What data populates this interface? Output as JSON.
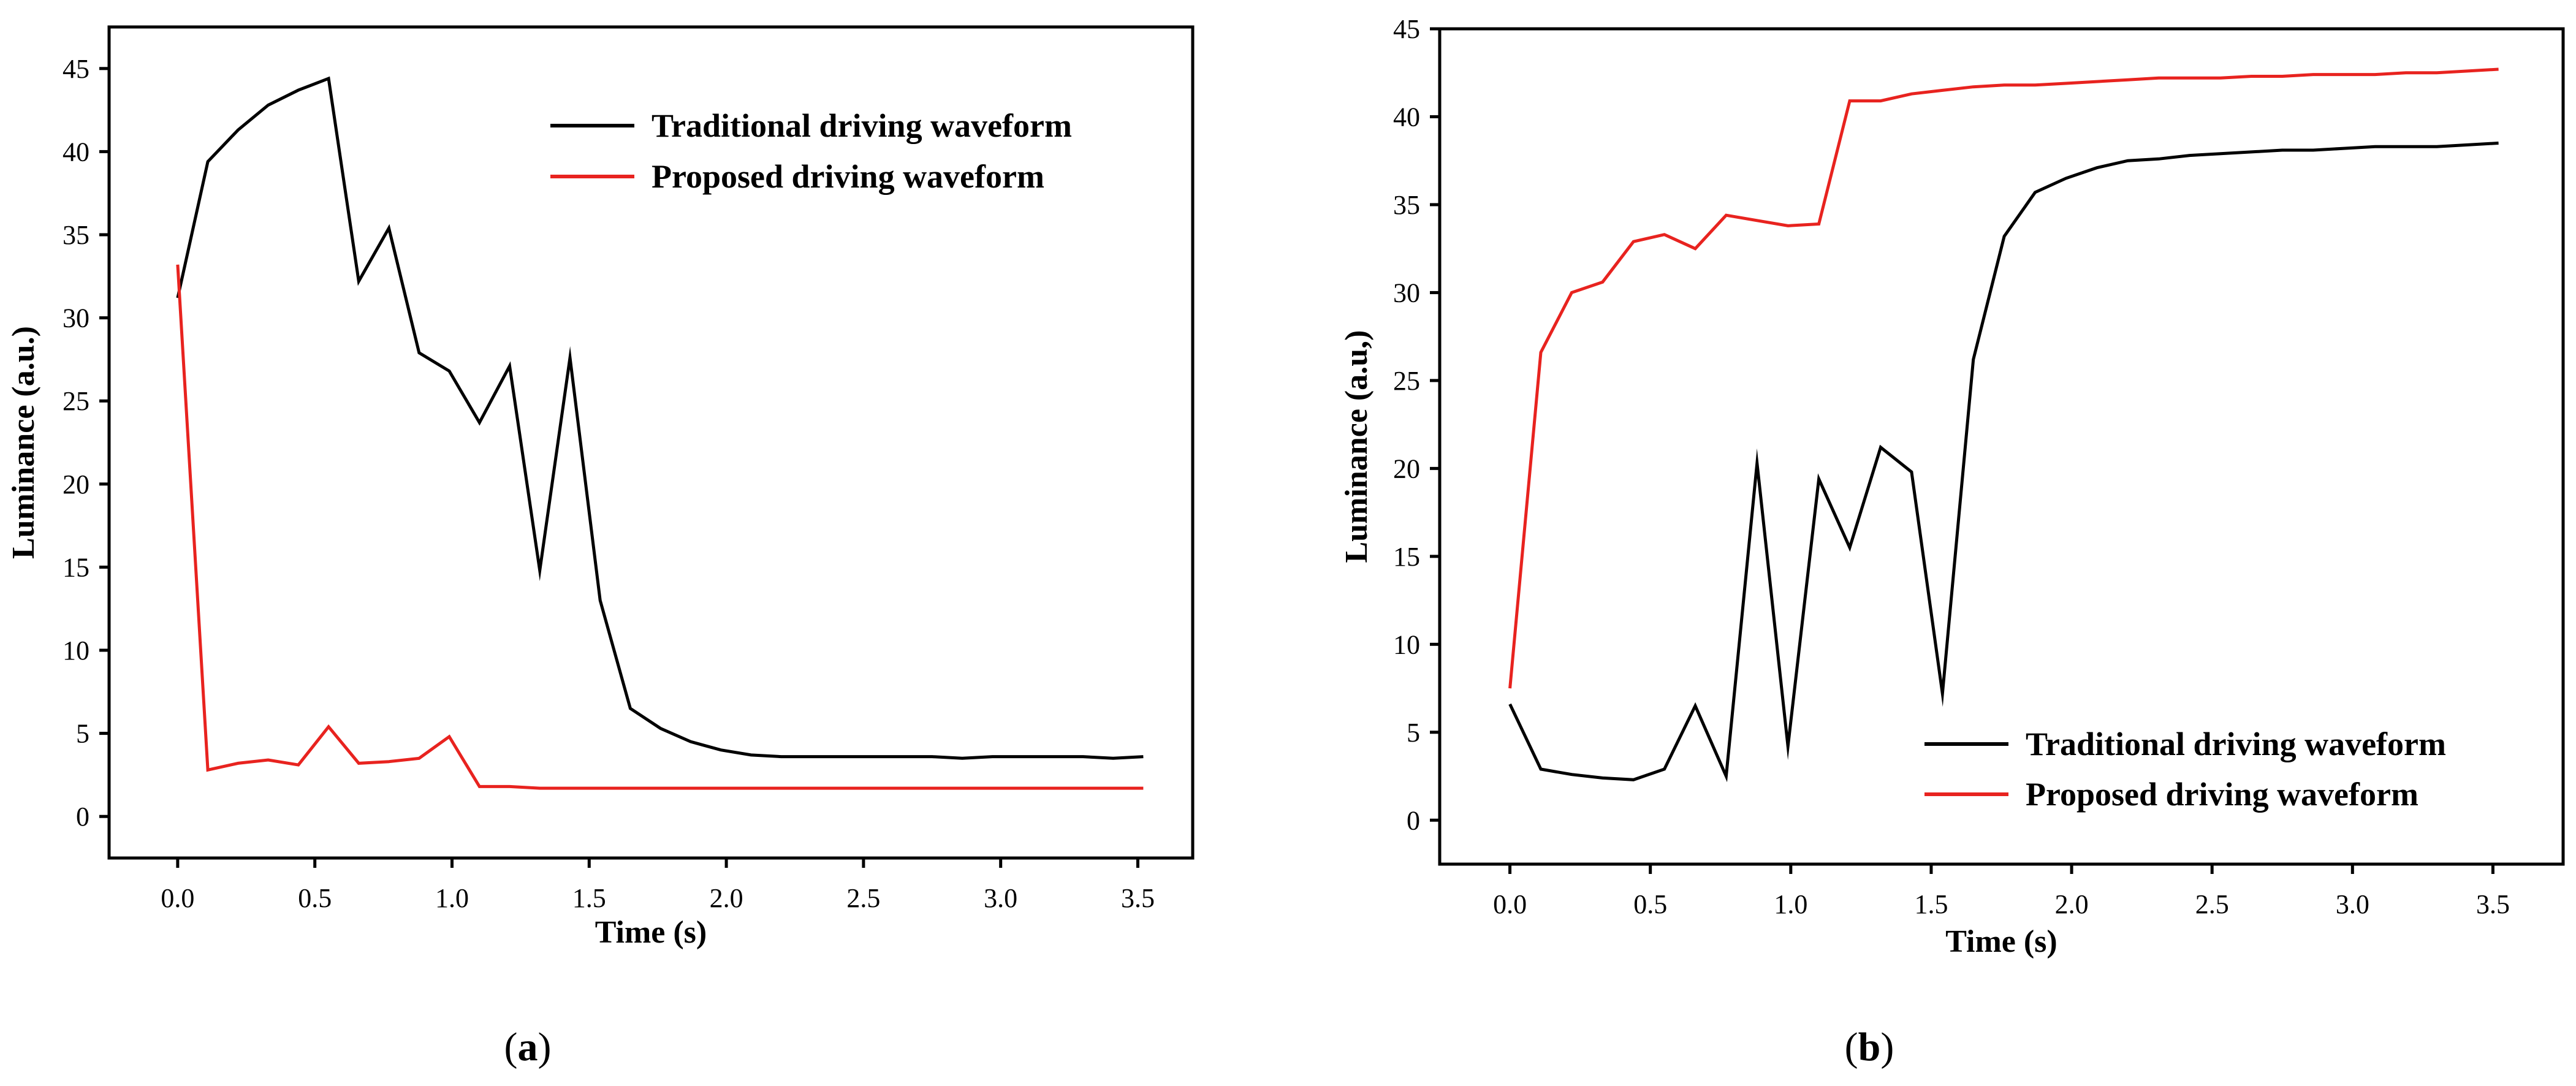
{
  "chart_data": [
    {
      "type": "line",
      "panel_label": "a",
      "xlabel": "Time (s)",
      "ylabel": "Luminance (a.u.)",
      "xlim": [
        -0.25,
        3.7
      ],
      "ylim": [
        -2.5,
        47.5
      ],
      "xticks": [
        0.0,
        0.5,
        1.0,
        1.5,
        2.0,
        2.5,
        3.0,
        3.5
      ],
      "xtick_labels": [
        "0.0",
        "0.5",
        "1.0",
        "1.5",
        "2.0",
        "2.5",
        "3.0",
        "3.5"
      ],
      "yticks": [
        0,
        5,
        10,
        15,
        20,
        25,
        30,
        35,
        40,
        45
      ],
      "ytick_labels": [
        "0",
        "5",
        "10",
        "15",
        "20",
        "25",
        "30",
        "35",
        "40",
        "45"
      ],
      "legend_position": "top-right",
      "grid": false,
      "series": [
        {
          "name": "Traditional driving waveform",
          "color": "#000000",
          "x": [
            0.0,
            0.11,
            0.22,
            0.33,
            0.44,
            0.55,
            0.66,
            0.77,
            0.88,
            0.99,
            1.1,
            1.21,
            1.32,
            1.43,
            1.54,
            1.65,
            1.76,
            1.87,
            1.98,
            2.09,
            2.2,
            2.31,
            2.42,
            2.53,
            2.64,
            2.75,
            2.86,
            2.97,
            3.08,
            3.19,
            3.3,
            3.41,
            3.52
          ],
          "y": [
            31.2,
            39.4,
            41.3,
            42.8,
            43.7,
            44.4,
            32.2,
            35.4,
            27.9,
            26.8,
            23.7,
            27.1,
            14.8,
            27.6,
            13.0,
            6.5,
            5.3,
            4.5,
            4.0,
            3.7,
            3.6,
            3.6,
            3.6,
            3.6,
            3.6,
            3.6,
            3.5,
            3.6,
            3.6,
            3.6,
            3.6,
            3.5,
            3.6
          ]
        },
        {
          "name": "Proposed driving waveform",
          "color": "#e8231f",
          "x": [
            0.0,
            0.11,
            0.22,
            0.33,
            0.44,
            0.55,
            0.66,
            0.77,
            0.88,
            0.99,
            1.1,
            1.21,
            1.32,
            1.43,
            1.54,
            1.65,
            1.76,
            1.87,
            1.98,
            2.09,
            2.2,
            2.31,
            2.42,
            2.53,
            2.64,
            2.75,
            2.86,
            2.97,
            3.08,
            3.19,
            3.3,
            3.41,
            3.52
          ],
          "y": [
            33.2,
            2.8,
            3.2,
            3.4,
            3.1,
            5.4,
            3.2,
            3.3,
            3.5,
            4.8,
            1.8,
            1.8,
            1.7,
            1.7,
            1.7,
            1.7,
            1.7,
            1.7,
            1.7,
            1.7,
            1.7,
            1.7,
            1.7,
            1.7,
            1.7,
            1.7,
            1.7,
            1.7,
            1.7,
            1.7,
            1.7,
            1.7,
            1.7
          ]
        }
      ]
    },
    {
      "type": "line",
      "panel_label": "b",
      "xlabel": "Time (s)",
      "ylabel": "Luminance (a.u,)",
      "xlim": [
        -0.25,
        3.75
      ],
      "ylim": [
        -2.5,
        45
      ],
      "xticks": [
        0.0,
        0.5,
        1.0,
        1.5,
        2.0,
        2.5,
        3.0,
        3.5
      ],
      "xtick_labels": [
        "0.0",
        "0.5",
        "1.0",
        "1.5",
        "2.0",
        "2.5",
        "3.0",
        "3.5"
      ],
      "yticks": [
        0,
        5,
        10,
        15,
        20,
        25,
        30,
        35,
        40,
        45
      ],
      "ytick_labels": [
        "0",
        "5",
        "10",
        "15",
        "20",
        "25",
        "30",
        "35",
        "40",
        "45"
      ],
      "legend_position": "bottom-right",
      "grid": false,
      "series": [
        {
          "name": "Traditional driving waveform",
          "color": "#000000",
          "x": [
            0.0,
            0.11,
            0.22,
            0.33,
            0.44,
            0.55,
            0.66,
            0.77,
            0.88,
            0.99,
            1.1,
            1.21,
            1.32,
            1.43,
            1.54,
            1.65,
            1.76,
            1.87,
            1.98,
            2.09,
            2.2,
            2.31,
            2.42,
            2.53,
            2.64,
            2.75,
            2.86,
            2.97,
            3.08,
            3.19,
            3.3,
            3.41,
            3.52
          ],
          "y": [
            6.6,
            2.9,
            2.6,
            2.4,
            2.3,
            2.9,
            6.5,
            2.5,
            20.3,
            4.2,
            19.4,
            15.5,
            21.2,
            19.8,
            7.2,
            26.2,
            33.2,
            35.7,
            36.5,
            37.1,
            37.5,
            37.6,
            37.8,
            37.9,
            38.0,
            38.1,
            38.1,
            38.2,
            38.3,
            38.3,
            38.3,
            38.4,
            38.5
          ]
        },
        {
          "name": "Proposed driving waveform",
          "color": "#e8231f",
          "x": [
            0.0,
            0.11,
            0.22,
            0.33,
            0.44,
            0.55,
            0.66,
            0.77,
            0.88,
            0.99,
            1.1,
            1.21,
            1.32,
            1.43,
            1.54,
            1.65,
            1.76,
            1.87,
            1.98,
            2.09,
            2.2,
            2.31,
            2.42,
            2.53,
            2.64,
            2.75,
            2.86,
            2.97,
            3.08,
            3.19,
            3.3,
            3.41,
            3.52
          ],
          "y": [
            7.5,
            26.6,
            30.0,
            30.6,
            32.9,
            33.3,
            32.5,
            34.4,
            34.1,
            33.8,
            33.9,
            40.9,
            40.9,
            41.3,
            41.5,
            41.7,
            41.8,
            41.8,
            41.9,
            42.0,
            42.1,
            42.2,
            42.2,
            42.2,
            42.3,
            42.3,
            42.4,
            42.4,
            42.4,
            42.5,
            42.5,
            42.6,
            42.7
          ]
        }
      ]
    }
  ]
}
